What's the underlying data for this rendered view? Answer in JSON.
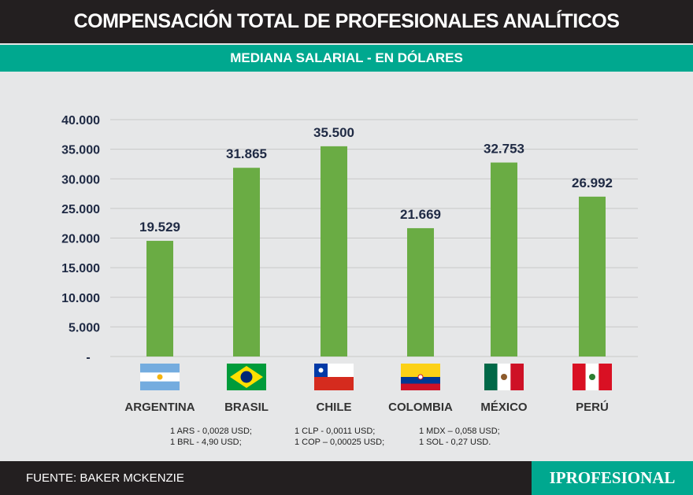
{
  "title": "COMPENSACIÓN TOTAL DE PROFESIONALES ANALÍTICOS",
  "subtitle": "MEDIANA SALARIAL - EN DÓLARES",
  "chart_data": {
    "type": "bar",
    "categories": [
      "ARGENTINA",
      "BRASIL",
      "CHILE",
      "COLOMBIA",
      "MÉXICO",
      "PERÚ"
    ],
    "values": [
      19529,
      31865,
      35500,
      21669,
      32753,
      26992
    ],
    "value_labels": [
      "19.529",
      "31.865",
      "35.500",
      "21.669",
      "32.753",
      "26.992"
    ],
    "ylim": [
      0,
      40000
    ],
    "yticks": [
      0,
      5000,
      10000,
      15000,
      20000,
      25000,
      30000,
      35000,
      40000
    ],
    "ytick_labels": [
      "-",
      "5.000",
      "10.000",
      "15.000",
      "20.000",
      "25.000",
      "30.000",
      "35.000",
      "40.000"
    ],
    "grid": true,
    "bar_color": "#6aac44",
    "flags": [
      "argentina-flag",
      "brazil-flag",
      "chile-flag",
      "colombia-flag",
      "mexico-flag",
      "peru-flag"
    ]
  },
  "notes": [
    [
      "1 ARS - 0,0028 USD;",
      "1 BRL - 4,90 USD;"
    ],
    [
      "1 CLP - 0,0011 USD;",
      "1 COP –  0,00025 USD;"
    ],
    [
      "1 MDX –  0,058 USD;",
      "1 SOL - 0,27 USD."
    ]
  ],
  "footer": "FUENTE: BAKER MCKENZIE",
  "logo": "IPROFESIONAL"
}
